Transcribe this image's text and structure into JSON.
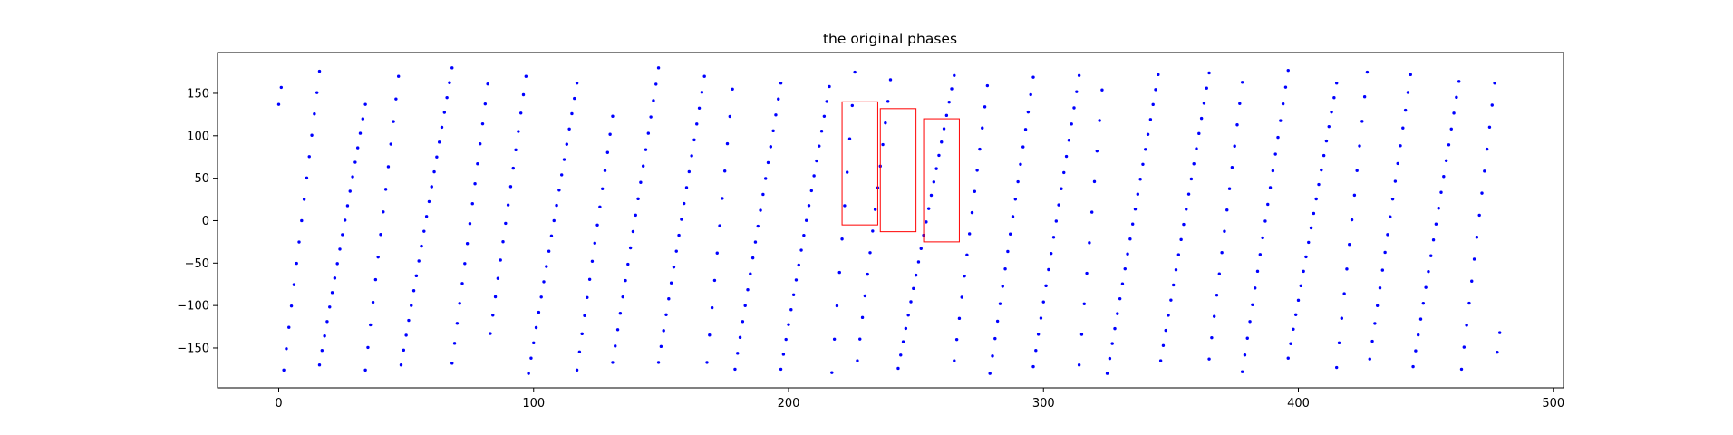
{
  "chart_data": {
    "type": "scatter",
    "title": "the original phases",
    "xlabel": "",
    "ylabel": "",
    "xlim": [
      -24,
      504
    ],
    "ylim": [
      -197,
      198
    ],
    "xticks": [
      0,
      100,
      200,
      300,
      400,
      500
    ],
    "yticks": [
      -150,
      -100,
      -50,
      0,
      50,
      100,
      150
    ],
    "grid": false,
    "colors": {
      "points": "#0000ff",
      "highlight_boxes": "#ff0000",
      "axes": "#000000"
    },
    "series": [
      {
        "color": "#0000ff",
        "marker": "dot",
        "segments": [
          {
            "x0": 0,
            "y0": 137,
            "x1": 1,
            "y1": 157
          },
          {
            "x0": 2,
            "y0": -176,
            "x1": 16,
            "y1": 176
          },
          {
            "x0": 16,
            "y0": -170,
            "x1": 34,
            "y1": 137
          },
          {
            "x0": 34,
            "y0": -176,
            "x1": 47,
            "y1": 170
          },
          {
            "x0": 48,
            "y0": -170,
            "x1": 68,
            "y1": 180
          },
          {
            "x0": 68,
            "y0": -168,
            "x1": 82,
            "y1": 161
          },
          {
            "x0": 83,
            "y0": -133,
            "x1": 97,
            "y1": 170
          },
          {
            "x0": 98,
            "y0": -180,
            "x1": 117,
            "y1": 162
          },
          {
            "x0": 117,
            "y0": -176,
            "x1": 131,
            "y1": 123
          },
          {
            "x0": 131,
            "y0": -167,
            "x1": 149,
            "y1": 180
          },
          {
            "x0": 149,
            "y0": -167,
            "x1": 167,
            "y1": 170
          },
          {
            "x0": 168,
            "y0": -167,
            "x1": 178,
            "y1": 155
          },
          {
            "x0": 179,
            "y0": -175,
            "x1": 197,
            "y1": 162
          },
          {
            "x0": 197,
            "y0": -175,
            "x1": 216,
            "y1": 158
          },
          {
            "x0": 217,
            "y0": -179,
            "x1": 226,
            "y1": 175
          },
          {
            "x0": 227,
            "y0": -165,
            "x1": 240,
            "y1": 166
          },
          {
            "x0": 243,
            "y0": -174,
            "x1": 265,
            "y1": 171
          },
          {
            "x0": 265,
            "y0": -165,
            "x1": 278,
            "y1": 159
          },
          {
            "x0": 279,
            "y0": -180,
            "x1": 296,
            "y1": 169
          },
          {
            "x0": 296,
            "y0": -172,
            "x1": 314,
            "y1": 171
          },
          {
            "x0": 314,
            "y0": -170,
            "x1": 323,
            "y1": 154
          },
          {
            "x0": 325,
            "y0": -180,
            "x1": 345,
            "y1": 172
          },
          {
            "x0": 346,
            "y0": -165,
            "x1": 365,
            "y1": 174
          },
          {
            "x0": 365,
            "y0": -163,
            "x1": 378,
            "y1": 163
          },
          {
            "x0": 378,
            "y0": -178,
            "x1": 396,
            "y1": 177
          },
          {
            "x0": 396,
            "y0": -162,
            "x1": 415,
            "y1": 162
          },
          {
            "x0": 415,
            "y0": -173,
            "x1": 427,
            "y1": 175
          },
          {
            "x0": 428,
            "y0": -163,
            "x1": 444,
            "y1": 172
          },
          {
            "x0": 445,
            "y0": -172,
            "x1": 463,
            "y1": 164
          },
          {
            "x0": 464,
            "y0": -175,
            "x1": 477,
            "y1": 162
          },
          {
            "x0": 478,
            "y0": -155,
            "x1": 479,
            "y1": -132
          }
        ]
      }
    ],
    "highlight_boxes": [
      {
        "x0": 221,
        "x1": 235,
        "y0": -5,
        "y1": 140
      },
      {
        "x0": 236,
        "x1": 250,
        "y0": -13,
        "y1": 132
      },
      {
        "x0": 253,
        "x1": 267,
        "y0": -25,
        "y1": 120
      }
    ]
  }
}
